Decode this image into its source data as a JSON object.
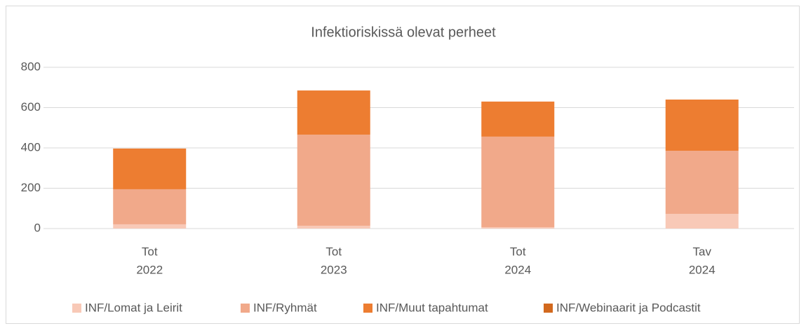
{
  "chart_data": {
    "type": "stacked_bar",
    "title": "Infektioriskissä olevat perheet",
    "categories": [
      [
        "Tot",
        "2022"
      ],
      [
        "Tot",
        "2023"
      ],
      [
        "Tot",
        "2024"
      ],
      [
        "Tav",
        "2024"
      ]
    ],
    "series": [
      {
        "name": "INF/Lomat ja Leirit",
        "color": "#f8c9b7",
        "values": [
          21,
          14,
          7,
          73
        ]
      },
      {
        "name": "INF/Ryhmät",
        "color": "#f1a98a",
        "values": [
          174,
          452,
          449,
          313
        ]
      },
      {
        "name": "INF/Muut tapahtumat",
        "color": "#ed7d31",
        "values": [
          202,
          219,
          174,
          254
        ]
      },
      {
        "name": "INF/Webinaarit ja Podcastit",
        "color": "#d2691e",
        "values": [
          0,
          0,
          0,
          0
        ]
      }
    ],
    "ylim": [
      0,
      800
    ],
    "yticks": [
      0,
      200,
      400,
      600,
      800
    ],
    "grid": true,
    "legend": "bottom"
  }
}
